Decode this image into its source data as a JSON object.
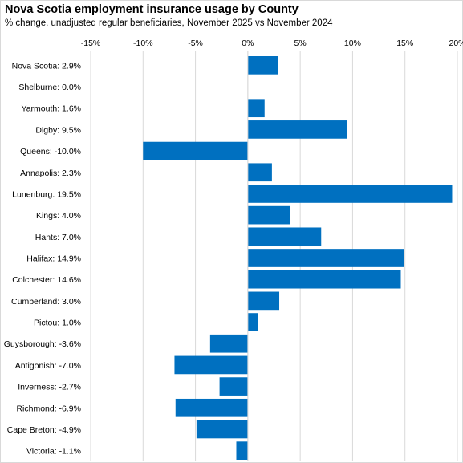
{
  "chart_data": {
    "type": "bar",
    "orientation": "horizontal",
    "title": "Nova Scotia employment insurance usage by County",
    "subtitle": "% change, unadjusted regular beneficiaries, November 2025 vs November 2024",
    "categories": [
      "Nova Scotia: 2.9%",
      "Shelburne: 0.0%",
      "Yarmouth: 1.6%",
      "Digby: 9.5%",
      "Queens: -10.0%",
      "Annapolis: 2.3%",
      "Lunenburg: 19.5%",
      "Kings: 4.0%",
      "Hants: 7.0%",
      "Halifax: 14.9%",
      "Colchester: 14.6%",
      "Cumberland: 3.0%",
      "Pictou: 1.0%",
      "Guysborough: -3.6%",
      "Antigonish: -7.0%",
      "Inverness: -2.7%",
      "Richmond: -6.9%",
      "Cape Breton: -4.9%",
      "Victoria: -1.1%"
    ],
    "values": [
      2.9,
      0.0,
      1.6,
      9.5,
      -10.0,
      2.3,
      19.5,
      4.0,
      7.0,
      14.9,
      14.6,
      3.0,
      1.0,
      -3.6,
      -7.0,
      -2.7,
      -6.9,
      -4.9,
      -1.1
    ],
    "xlim": [
      -15,
      20
    ],
    "xticks": [
      -15,
      -10,
      -5,
      0,
      5,
      10,
      15,
      20
    ],
    "xtick_labels": [
      "-15%",
      "-10%",
      "-5%",
      "0%",
      "5%",
      "10%",
      "15%",
      "20%"
    ],
    "grid": true,
    "bar_color": "#0070c0"
  }
}
